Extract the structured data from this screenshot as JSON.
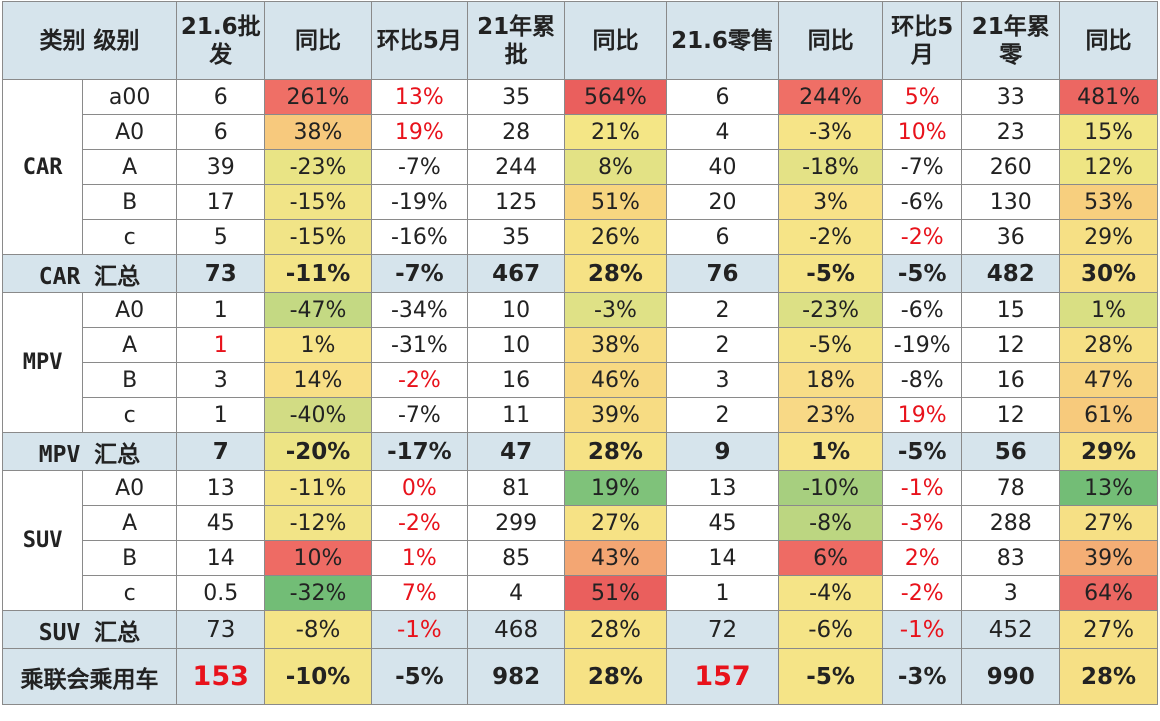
{
  "headers": [
    "类别 级别",
    "21.6批发",
    "同比",
    "环比5月",
    "21年累批",
    "同比",
    "21.6零售",
    "同比",
    "环比5月",
    "21年累零",
    "同比"
  ],
  "groups": [
    {
      "category": "CAR",
      "rows": [
        {
          "level": "a00",
          "cells": [
            {
              "v": "6"
            },
            {
              "v": "261%",
              "bg": "#ef6f66"
            },
            {
              "v": "13%",
              "red": true
            },
            {
              "v": "35"
            },
            {
              "v": "564%",
              "bg": "#ea5f5d"
            },
            {
              "v": "6"
            },
            {
              "v": "244%",
              "bg": "#ef6f66"
            },
            {
              "v": "5%",
              "red": true
            },
            {
              "v": "33"
            },
            {
              "v": "481%",
              "bg": "#ec6762"
            }
          ]
        },
        {
          "level": "A0",
          "cells": [
            {
              "v": "6"
            },
            {
              "v": "38%",
              "bg": "#f7c97d"
            },
            {
              "v": "19%",
              "red": true
            },
            {
              "v": "28"
            },
            {
              "v": "21%",
              "bg": "#f4e686"
            },
            {
              "v": "4"
            },
            {
              "v": "-3%",
              "bg": "#f6e487"
            },
            {
              "v": "10%",
              "red": true
            },
            {
              "v": "23"
            },
            {
              "v": "15%",
              "bg": "#f2e686"
            }
          ]
        },
        {
          "level": "A",
          "cells": [
            {
              "v": "39"
            },
            {
              "v": "-23%",
              "bg": "#e9e485"
            },
            {
              "v": "-7%"
            },
            {
              "v": "244"
            },
            {
              "v": "8%",
              "bg": "#e3e285"
            },
            {
              "v": "40"
            },
            {
              "v": "-18%",
              "bg": "#e4e286"
            },
            {
              "v": "-7%"
            },
            {
              "v": "260"
            },
            {
              "v": "12%",
              "bg": "#eee584"
            }
          ]
        },
        {
          "level": "B",
          "cells": [
            {
              "v": "17"
            },
            {
              "v": "-15%",
              "bg": "#f1e487"
            },
            {
              "v": "-19%"
            },
            {
              "v": "125"
            },
            {
              "v": "51%",
              "bg": "#f7d680"
            },
            {
              "v": "20"
            },
            {
              "v": "3%",
              "bg": "#f8e188"
            },
            {
              "v": "-6%"
            },
            {
              "v": "130"
            },
            {
              "v": "53%",
              "bg": "#f7cf7e"
            }
          ]
        },
        {
          "level": "c",
          "cells": [
            {
              "v": "5"
            },
            {
              "v": "-15%",
              "bg": "#f1e487"
            },
            {
              "v": "-16%"
            },
            {
              "v": "35"
            },
            {
              "v": "26%",
              "bg": "#f6e285"
            },
            {
              "v": "6"
            },
            {
              "v": "-2%",
              "bg": "#f6e487"
            },
            {
              "v": "-2%",
              "red": true
            },
            {
              "v": "36"
            },
            {
              "v": "29%",
              "bg": "#f6e085"
            }
          ]
        }
      ],
      "summary": {
        "label": "CAR 汇总",
        "plain": false,
        "cells": [
          {
            "v": "73"
          },
          {
            "v": "-11%",
            "bg": "#f3e487"
          },
          {
            "v": "-7%"
          },
          {
            "v": "467"
          },
          {
            "v": "28%",
            "bg": "#f6e285"
          },
          {
            "v": "76"
          },
          {
            "v": "-5%",
            "bg": "#f5e487"
          },
          {
            "v": "-5%"
          },
          {
            "v": "482"
          },
          {
            "v": "30%",
            "bg": "#f6df85"
          }
        ]
      }
    },
    {
      "category": "MPV",
      "rows": [
        {
          "level": "A0",
          "cells": [
            {
              "v": "1"
            },
            {
              "v": "-47%",
              "bg": "#c4d983"
            },
            {
              "v": "-34%"
            },
            {
              "v": "10"
            },
            {
              "v": "-3%",
              "bg": "#dfe186"
            },
            {
              "v": "2"
            },
            {
              "v": "-23%",
              "bg": "#dce085"
            },
            {
              "v": "-6%"
            },
            {
              "v": "15"
            },
            {
              "v": "1%",
              "bg": "#d9df83"
            }
          ]
        },
        {
          "level": "A",
          "cells": [
            {
              "v": "1",
              "red": true
            },
            {
              "v": "1%",
              "bg": "#f7e488"
            },
            {
              "v": "-31%"
            },
            {
              "v": "10"
            },
            {
              "v": "38%",
              "bg": "#f7dd84"
            },
            {
              "v": "2"
            },
            {
              "v": "-5%",
              "bg": "#f5e487"
            },
            {
              "v": "-19%"
            },
            {
              "v": "12"
            },
            {
              "v": "28%",
              "bg": "#f6e085"
            }
          ]
        },
        {
          "level": "B",
          "cells": [
            {
              "v": "3"
            },
            {
              "v": "14%",
              "bg": "#f8df86"
            },
            {
              "v": "-2%",
              "red": true
            },
            {
              "v": "16"
            },
            {
              "v": "46%",
              "bg": "#f7d982"
            },
            {
              "v": "3"
            },
            {
              "v": "18%",
              "bg": "#f8dd87"
            },
            {
              "v": "-8%"
            },
            {
              "v": "16"
            },
            {
              "v": "47%",
              "bg": "#f7d480"
            }
          ]
        },
        {
          "level": "c",
          "cells": [
            {
              "v": "1"
            },
            {
              "v": "-40%",
              "bg": "#d2dc84"
            },
            {
              "v": "-7%"
            },
            {
              "v": "11"
            },
            {
              "v": "39%",
              "bg": "#f7dc83"
            },
            {
              "v": "2"
            },
            {
              "v": "23%",
              "bg": "#f8d986"
            },
            {
              "v": "19%",
              "red": true
            },
            {
              "v": "12"
            },
            {
              "v": "61%",
              "bg": "#f7ca7c"
            }
          ]
        }
      ],
      "summary": {
        "label": "MPV 汇总",
        "plain": false,
        "cells": [
          {
            "v": "7"
          },
          {
            "v": "-20%",
            "bg": "#ede485"
          },
          {
            "v": "-17%"
          },
          {
            "v": "47"
          },
          {
            "v": "28%",
            "bg": "#f6e285"
          },
          {
            "v": "9"
          },
          {
            "v": "1%",
            "bg": "#f7e388"
          },
          {
            "v": "-5%"
          },
          {
            "v": "56"
          },
          {
            "v": "29%",
            "bg": "#f6e085"
          }
        ]
      }
    },
    {
      "category": "SUV",
      "rows": [
        {
          "level": "A0",
          "cells": [
            {
              "v": "13"
            },
            {
              "v": "-11%",
              "bg": "#f3e487"
            },
            {
              "v": "0%",
              "red": true
            },
            {
              "v": "81"
            },
            {
              "v": "19%",
              "bg": "#7fc27a"
            },
            {
              "v": "13"
            },
            {
              "v": "-10%",
              "bg": "#a7cf7f"
            },
            {
              "v": "-1%",
              "red": true
            },
            {
              "v": "78"
            },
            {
              "v": "13%",
              "bg": "#73bd76"
            }
          ]
        },
        {
          "level": "A",
          "cells": [
            {
              "v": "45"
            },
            {
              "v": "-12%",
              "bg": "#f2e487"
            },
            {
              "v": "-2%",
              "red": true
            },
            {
              "v": "299"
            },
            {
              "v": "27%",
              "bg": "#f6e285"
            },
            {
              "v": "45"
            },
            {
              "v": "-8%",
              "bg": "#bcd681"
            },
            {
              "v": "-3%",
              "red": true
            },
            {
              "v": "288"
            },
            {
              "v": "27%",
              "bg": "#f6e085"
            }
          ]
        },
        {
          "level": "B",
          "cells": [
            {
              "v": "14"
            },
            {
              "v": "10%",
              "bg": "#ee6b64"
            },
            {
              "v": "1%",
              "red": true
            },
            {
              "v": "85"
            },
            {
              "v": "43%",
              "bg": "#f3a673"
            },
            {
              "v": "14"
            },
            {
              "v": "6%",
              "bg": "#ee6b64"
            },
            {
              "v": "2%",
              "red": true
            },
            {
              "v": "83"
            },
            {
              "v": "39%",
              "bg": "#f4ae75"
            }
          ]
        },
        {
          "level": "c",
          "cells": [
            {
              "v": "0.5"
            },
            {
              "v": "-32%",
              "bg": "#72bd76"
            },
            {
              "v": "7%",
              "red": true
            },
            {
              "v": "4"
            },
            {
              "v": "51%",
              "bg": "#ea5f5d"
            },
            {
              "v": "1"
            },
            {
              "v": "-4%",
              "bg": "#f5e487"
            },
            {
              "v": "-2%",
              "red": true
            },
            {
              "v": "3"
            },
            {
              "v": "64%",
              "bg": "#ec6762"
            }
          ]
        }
      ],
      "summary": {
        "label": "SUV 汇总",
        "plain": true,
        "cells": [
          {
            "v": "73"
          },
          {
            "v": "-8%",
            "bg": "#f4e487"
          },
          {
            "v": "-1%",
            "red": true
          },
          {
            "v": "468"
          },
          {
            "v": "28%",
            "bg": "#f6e285"
          },
          {
            "v": "72"
          },
          {
            "v": "-6%",
            "bg": "#f5e487"
          },
          {
            "v": "-1%",
            "red": true
          },
          {
            "v": "452"
          },
          {
            "v": "27%",
            "bg": "#f6e085"
          }
        ]
      }
    }
  ],
  "total": {
    "label": "乘联会乘用车",
    "cells": [
      {
        "v": "153",
        "red": true,
        "big": true
      },
      {
        "v": "-10%",
        "bg": "#f3e487"
      },
      {
        "v": "-5%"
      },
      {
        "v": "982"
      },
      {
        "v": "28%",
        "bg": "#f6e285"
      },
      {
        "v": "157",
        "red": true,
        "big": true
      },
      {
        "v": "-5%",
        "bg": "#f5e487"
      },
      {
        "v": "-3%"
      },
      {
        "v": "990"
      },
      {
        "v": "28%",
        "bg": "#f6e085"
      }
    ]
  }
}
